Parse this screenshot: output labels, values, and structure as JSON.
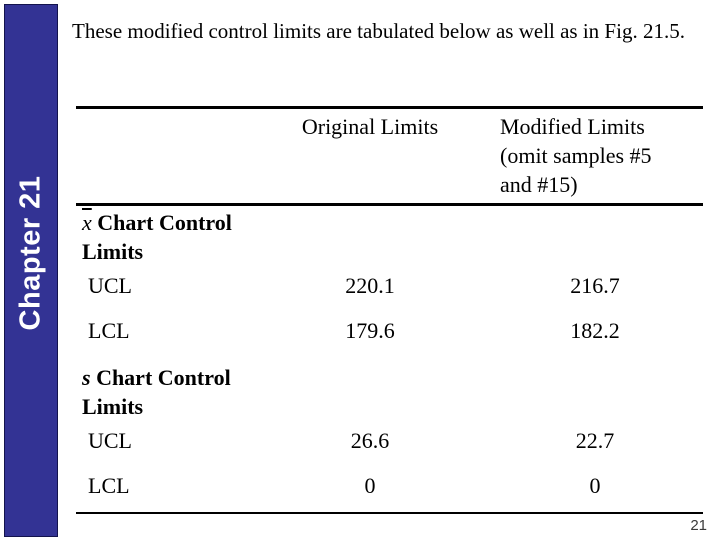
{
  "title": "These modified control limits are tabulated below as well as in Fig. 21.5.",
  "sidebar": {
    "label": "Chapter 21",
    "bg_color": "#333394",
    "text_color": "#ffffff"
  },
  "table": {
    "headers": {
      "original": "Original Limits",
      "modified": "Modified Limits (omit samples #5 and #15)"
    },
    "sections": [
      {
        "prefix": "x",
        "rest": "Chart Control Limits",
        "rows": [
          {
            "label": "UCL",
            "original": "220.1",
            "modified": "216.7"
          },
          {
            "label": "LCL",
            "original": "179.6",
            "modified": "182.2"
          }
        ]
      },
      {
        "prefix": "s",
        "rest": "Chart Control Limits",
        "rows": [
          {
            "label": "UCL",
            "original": "26.6",
            "modified": "22.7"
          },
          {
            "label": "LCL",
            "original": "0",
            "modified": "0"
          }
        ]
      }
    ],
    "rule_color": "#000000"
  },
  "page_number": "21"
}
